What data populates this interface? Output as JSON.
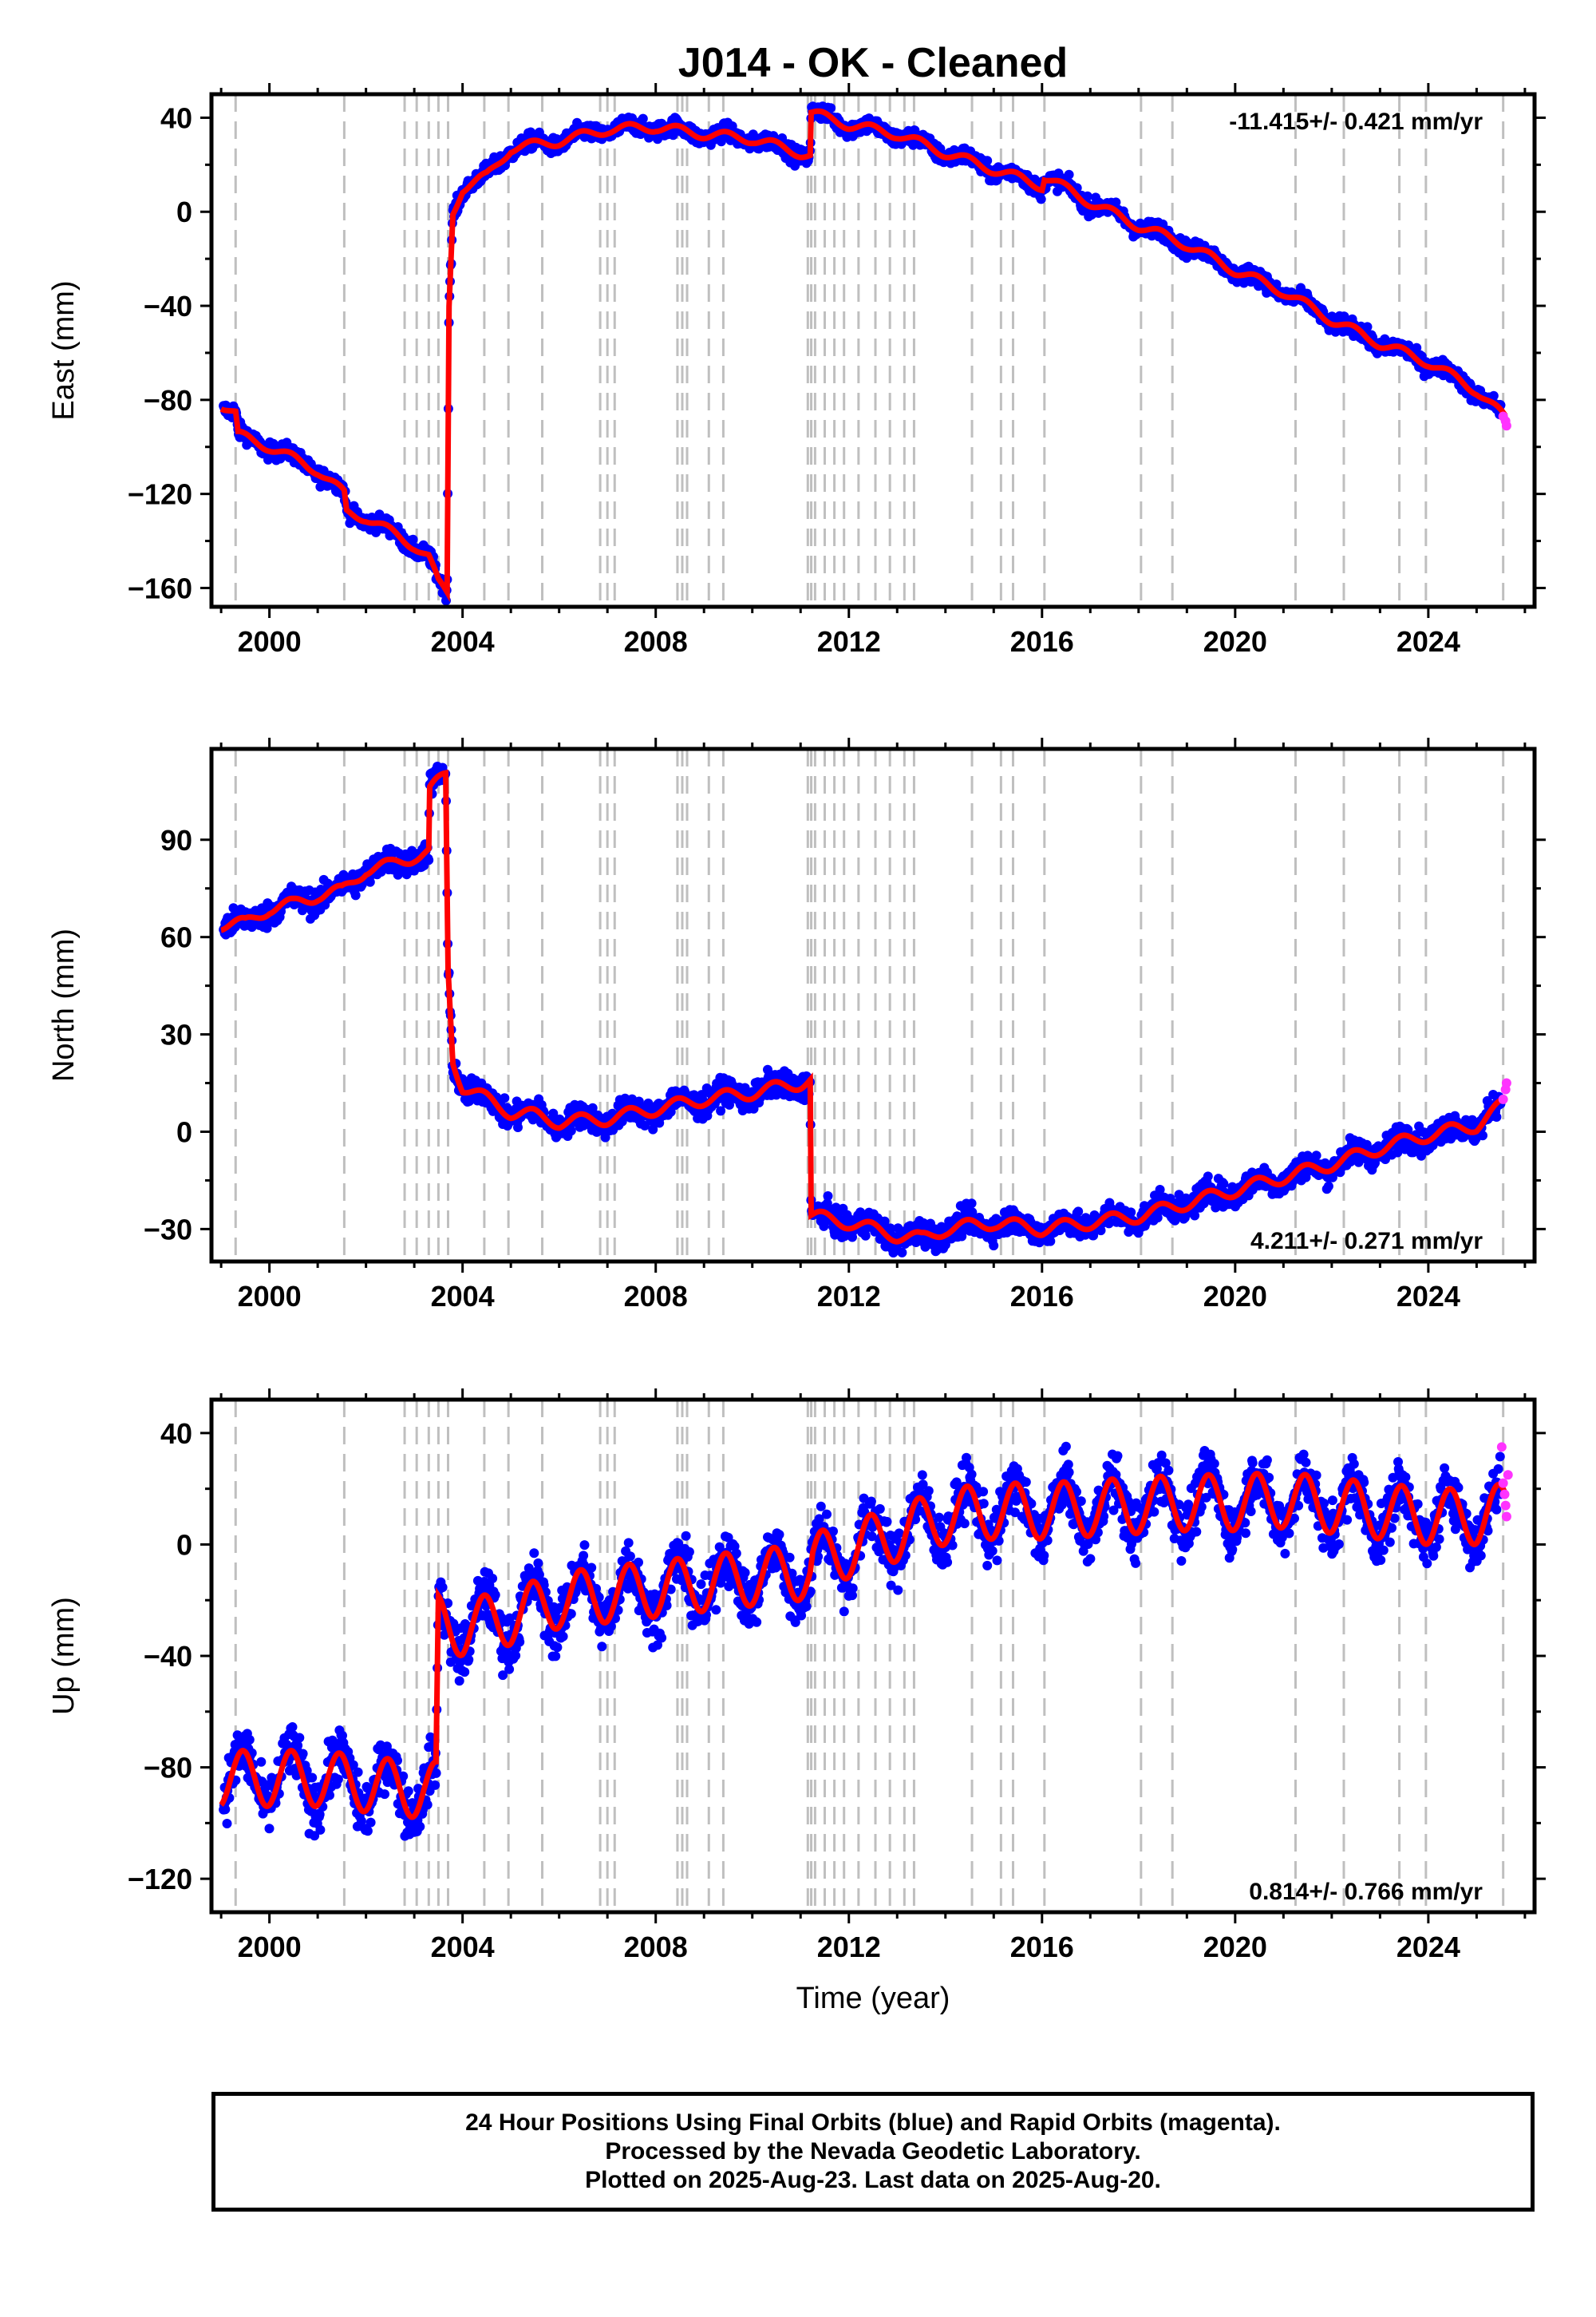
{
  "title": "J014  - OK - Cleaned",
  "colors": {
    "final_orbits": "#0000ff",
    "rapid_orbits": "#ff33ff",
    "model": "#ff0000",
    "event_lines": "#bfbfbf",
    "frame": "#000000"
  },
  "x_axis": {
    "label": "Time (year)",
    "range": [
      1998.8,
      2026.2
    ],
    "ticks": [
      2000,
      2004,
      2008,
      2012,
      2016,
      2020,
      2024
    ],
    "tick_labels": [
      "2000",
      "2004",
      "2008",
      "2012",
      "2016",
      "2020",
      "2024"
    ]
  },
  "event_lines": [
    1999.3,
    2001.55,
    2002.8,
    2003.05,
    2003.3,
    2003.5,
    2003.7,
    2004.45,
    2004.95,
    2005.65,
    2006.85,
    2007.0,
    2007.15,
    2008.45,
    2008.55,
    2008.65,
    2009.1,
    2009.4,
    2011.15,
    2011.22,
    2011.3,
    2011.5,
    2011.7,
    2011.9,
    2012.2,
    2012.55,
    2012.85,
    2013.15,
    2013.35,
    2014.55,
    2015.15,
    2015.4,
    2016.05,
    2018.05,
    2018.7,
    2021.25,
    2022.25,
    2023.4,
    2023.95,
    2025.55
  ],
  "footer": {
    "line1": "24 Hour Positions Using Final Orbits (blue) and Rapid Orbits (magenta).",
    "line2": "Processed by the Nevada Geodetic Laboratory.",
    "line3": "Plotted on 2025-Aug-23. Last data on 2025-Aug-20."
  },
  "chart_data": [
    {
      "type": "scatter",
      "component": "east",
      "ylabel": "East (mm)",
      "ylim": [
        -168,
        50
      ],
      "yticks": [
        -160,
        -120,
        -80,
        -40,
        0,
        40
      ],
      "rate_label": "-11.415+/- 0.421 mm/yr",
      "rate_position": "top-right",
      "model_x": [
        1999.0,
        1999.3,
        1999.35,
        2000.0,
        2001.0,
        2001.55,
        2001.6,
        2002.0,
        2003.0,
        2003.3,
        2003.5,
        2003.68,
        2003.72,
        2003.8,
        2004.0,
        2004.5,
        2005.0,
        2006.0,
        2007.0,
        2008.0,
        2009.0,
        2010.0,
        2011.0,
        2011.2,
        2011.22,
        2012.0,
        2013.0,
        2014.0,
        2015.0,
        2016.0,
        2016.05,
        2017.0,
        2018.0,
        2019.0,
        2020.0,
        2021.0,
        2022.0,
        2023.0,
        2024.0,
        2025.0,
        2025.6
      ],
      "model_y": [
        -82,
        -86,
        -95,
        -100,
        -110,
        -120,
        -128,
        -130,
        -142,
        -147,
        -158,
        -162,
        -40,
        0,
        10,
        15,
        27,
        30,
        35,
        36,
        33,
        31,
        25,
        24,
        42,
        37,
        33,
        25,
        18,
        11,
        15,
        4,
        -6,
        -14,
        -25,
        -34,
        -46,
        -56,
        -64,
        -76,
        -88
      ],
      "seasonal_amplitude": 2.0,
      "scatter_spread": 2.5,
      "rapid_x": [
        2025.55,
        2025.6,
        2025.62
      ],
      "rapid_y": [
        -87,
        -89,
        -91
      ]
    },
    {
      "type": "scatter",
      "component": "north",
      "ylabel": "North (mm)",
      "ylim": [
        -40,
        118
      ],
      "yticks": [
        -30,
        0,
        30,
        60,
        90
      ],
      "rate_label": "4.211+/- 0.271 mm/yr",
      "rate_position": "bottom-right",
      "model_x": [
        1999.0,
        1999.5,
        2000.0,
        2000.5,
        2001.0,
        2001.5,
        2002.0,
        2002.5,
        2003.0,
        2003.3,
        2003.32,
        2003.65,
        2003.7,
        2003.8,
        2004.0,
        2004.5,
        2005.0,
        2005.5,
        2006.0,
        2007.0,
        2008.0,
        2009.0,
        2010.0,
        2011.0,
        2011.2,
        2011.22,
        2012.0,
        2013.0,
        2013.5,
        2014.0,
        2015.0,
        2016.0,
        2017.0,
        2018.0,
        2019.0,
        2020.0,
        2021.0,
        2022.0,
        2023.0,
        2024.0,
        2025.0,
        2025.6
      ],
      "model_y": [
        64,
        64,
        69,
        70,
        73,
        74,
        81,
        82,
        85,
        86,
        105,
        110,
        50,
        22,
        14,
        10,
        6,
        5,
        3,
        4,
        7,
        10,
        12,
        15,
        16,
        -26,
        -28,
        -32,
        -33,
        -30,
        -28,
        -30,
        -28,
        -26,
        -22,
        -18,
        -14,
        -10,
        -5,
        -1,
        2,
        9
      ],
      "seasonal_amplitude": 2.0,
      "scatter_spread": 2.8,
      "rapid_x": [
        2025.55,
        2025.6,
        2025.62
      ],
      "rapid_y": [
        10,
        13,
        15
      ]
    },
    {
      "type": "scatter",
      "component": "up",
      "ylabel": "Up (mm)",
      "ylim": [
        -132,
        52
      ],
      "yticks": [
        -120,
        -80,
        -40,
        0,
        40
      ],
      "rate_label": "0.814+/- 0.766 mm/yr",
      "rate_position": "bottom-right",
      "model_x": [
        1999.0,
        2000.0,
        2001.0,
        2002.0,
        2003.0,
        2003.45,
        2003.5,
        2004.0,
        2005.0,
        2006.0,
        2007.0,
        2008.0,
        2009.0,
        2010.0,
        2011.0,
        2011.2,
        2011.25,
        2012.0,
        2013.0,
        2014.0,
        2015.0,
        2016.0,
        2017.0,
        2018.0,
        2019.0,
        2020.0,
        2021.0,
        2022.0,
        2023.0,
        2024.0,
        2025.0,
        2025.6
      ],
      "model_y": [
        -84,
        -84,
        -84,
        -86,
        -88,
        -88,
        -28,
        -30,
        -26,
        -20,
        -18,
        -16,
        -14,
        -12,
        -10,
        -10,
        -6,
        -2,
        4,
        10,
        12,
        12,
        13,
        14,
        15,
        15,
        16,
        14,
        12,
        10,
        10,
        12
      ],
      "seasonal_amplitude": 10.0,
      "scatter_spread": 7.0,
      "rapid_x": [
        2025.52,
        2025.55,
        2025.58,
        2025.6,
        2025.62,
        2025.65
      ],
      "rapid_y": [
        35,
        22,
        18,
        14,
        10,
        25
      ]
    }
  ]
}
